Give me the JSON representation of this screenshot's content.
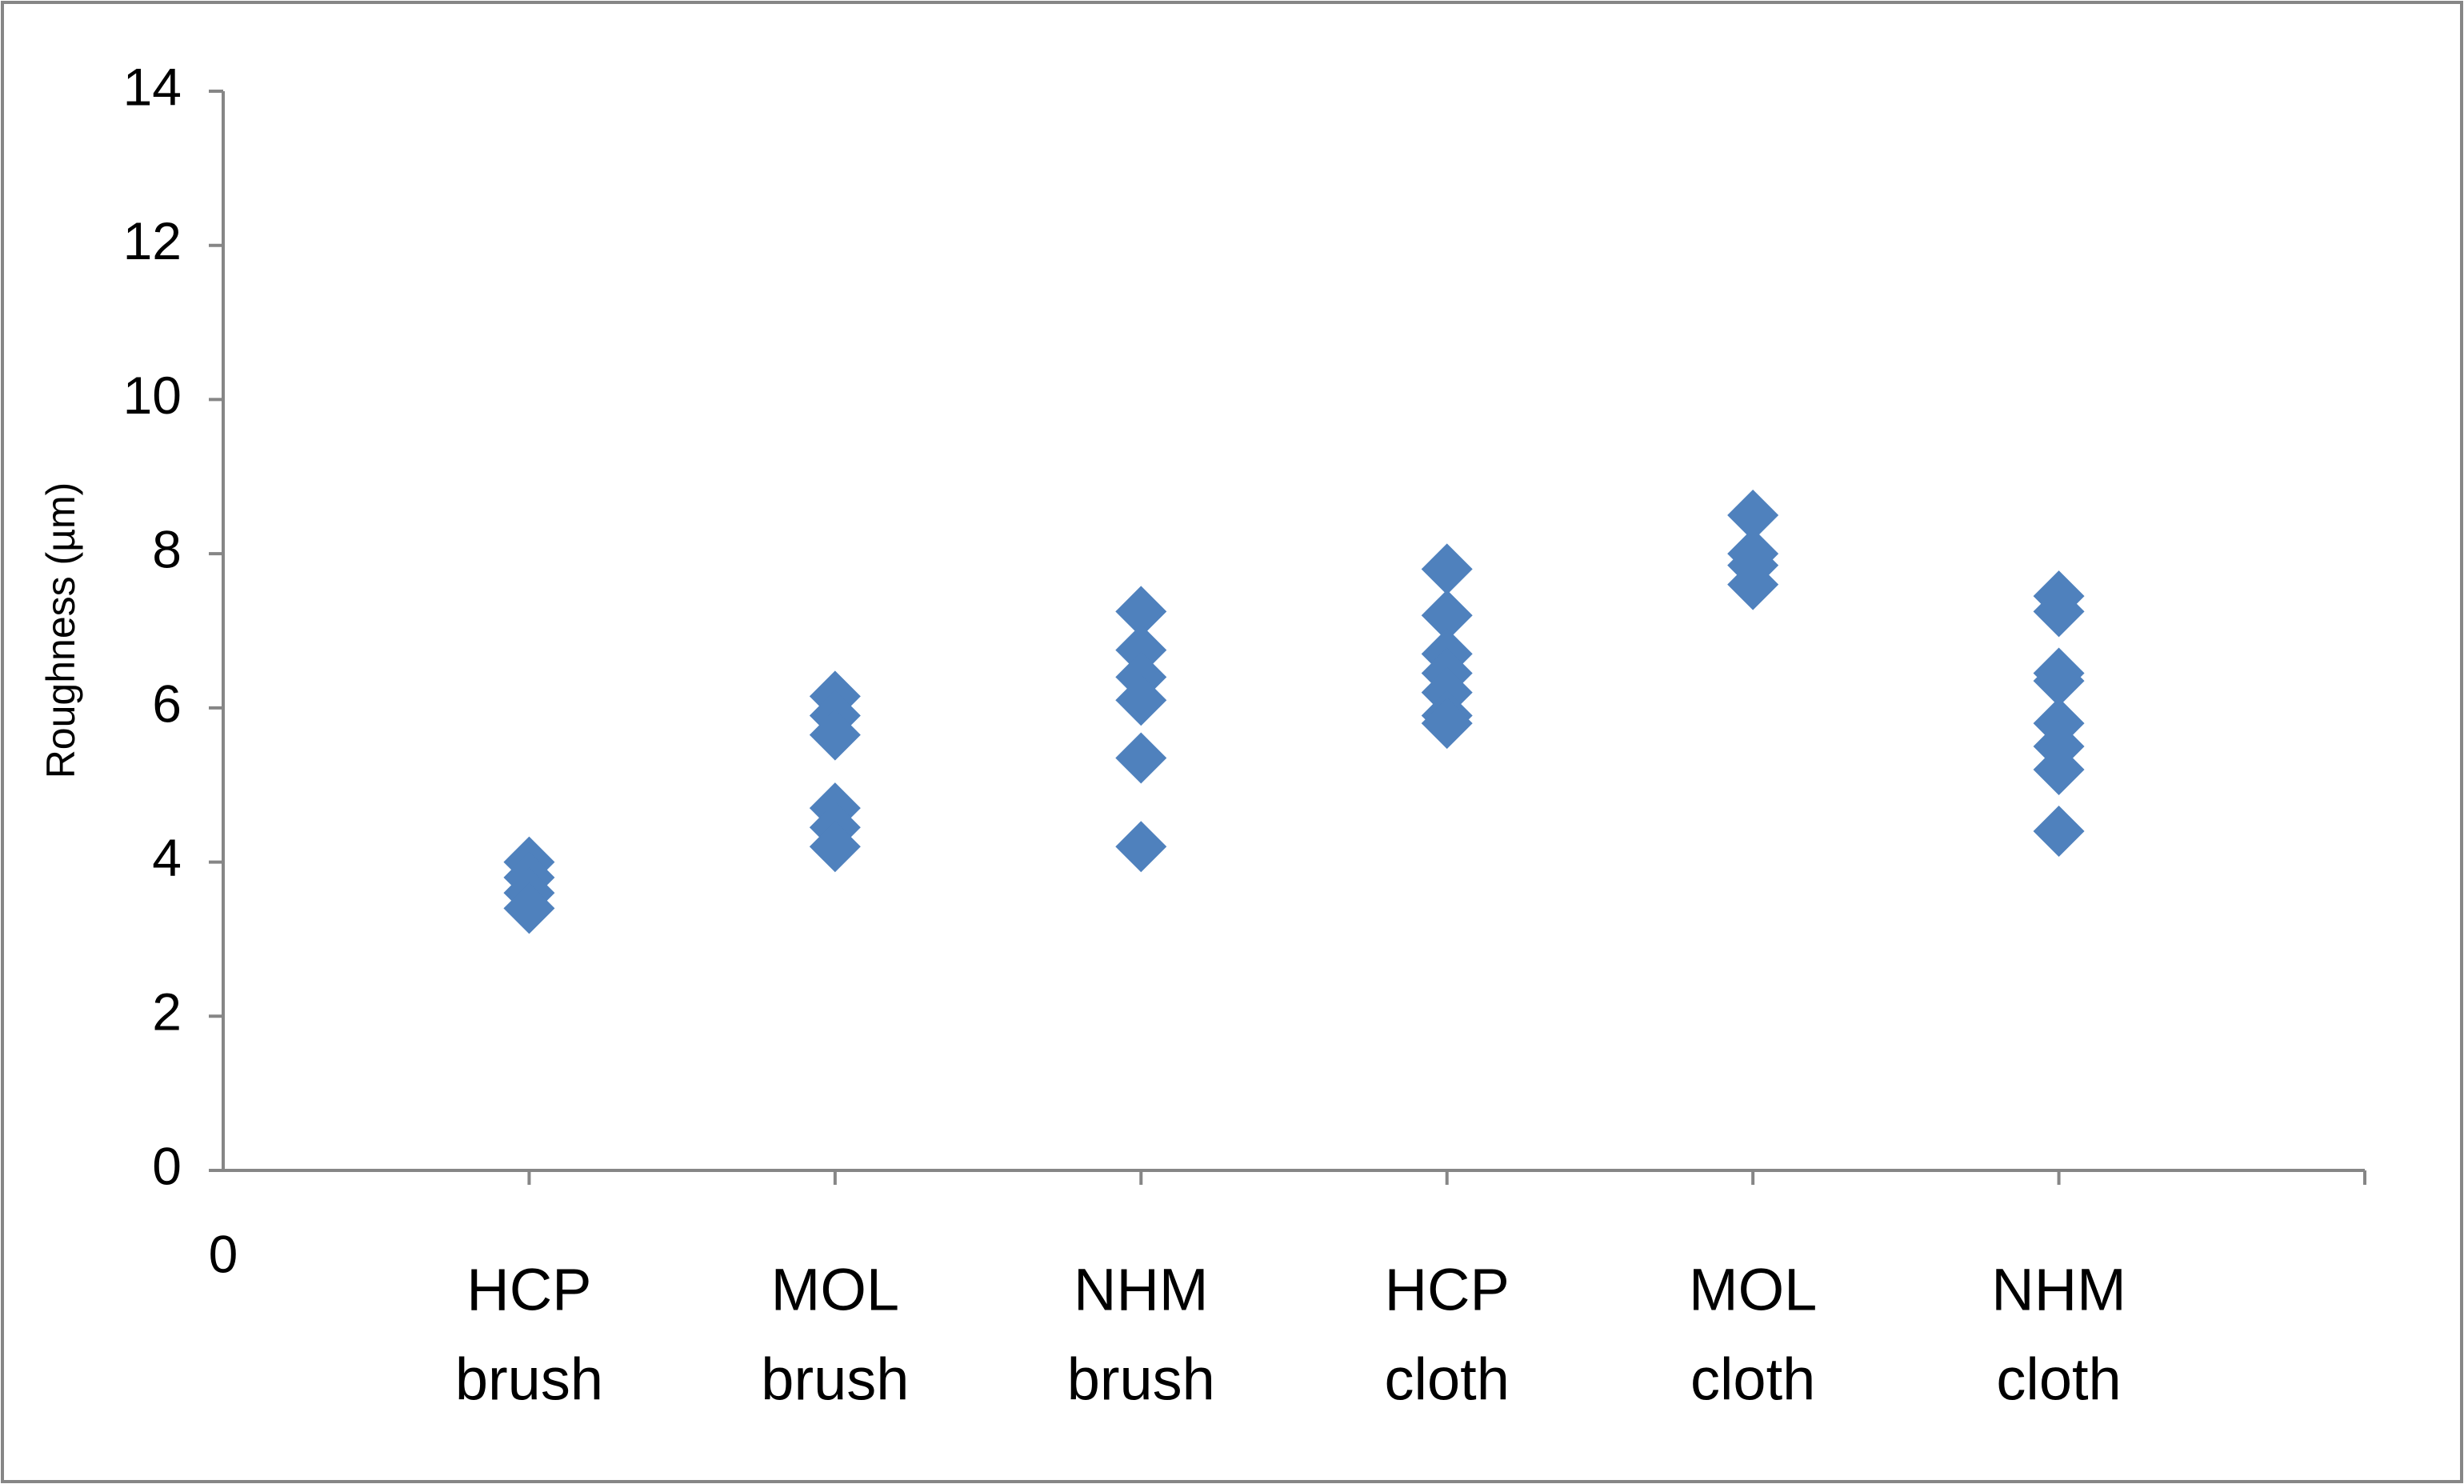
{
  "chart_data": {
    "type": "scatter",
    "y_label": "Roughness (µm)",
    "categories": [
      [
        "HCP",
        "brush"
      ],
      [
        "MOL",
        "brush"
      ],
      [
        "NHM",
        "brush"
      ],
      [
        "HCP",
        "cloth"
      ],
      [
        "MOL",
        "cloth"
      ],
      [
        "NHM",
        "cloth"
      ]
    ],
    "xlim": [
      0,
      7
    ],
    "xticks": [
      0
    ],
    "ylim": [
      0,
      14
    ],
    "yticks": [
      0,
      2,
      4,
      6,
      8,
      10,
      12,
      14
    ],
    "grid": false,
    "series": [
      {
        "color": "#4f81bd",
        "x": [
          1,
          1,
          1,
          1,
          2,
          2,
          2,
          2,
          2,
          2,
          3,
          3,
          3,
          3,
          3,
          3,
          4,
          4,
          4,
          4,
          4,
          4,
          4,
          5,
          5,
          5,
          5,
          6,
          6,
          6,
          6,
          6,
          6,
          6,
          6
        ],
        "y": [
          4.0,
          3.8,
          3.6,
          3.4,
          6.15,
          5.9,
          5.65,
          4.7,
          4.45,
          4.2,
          7.25,
          6.75,
          6.4,
          6.1,
          5.35,
          4.2,
          7.8,
          7.2,
          6.7,
          6.45,
          6.2,
          5.9,
          5.8,
          8.5,
          8.0,
          7.85,
          7.6,
          7.45,
          7.25,
          6.45,
          6.35,
          5.8,
          5.5,
          5.2,
          4.4
        ]
      }
    ]
  }
}
